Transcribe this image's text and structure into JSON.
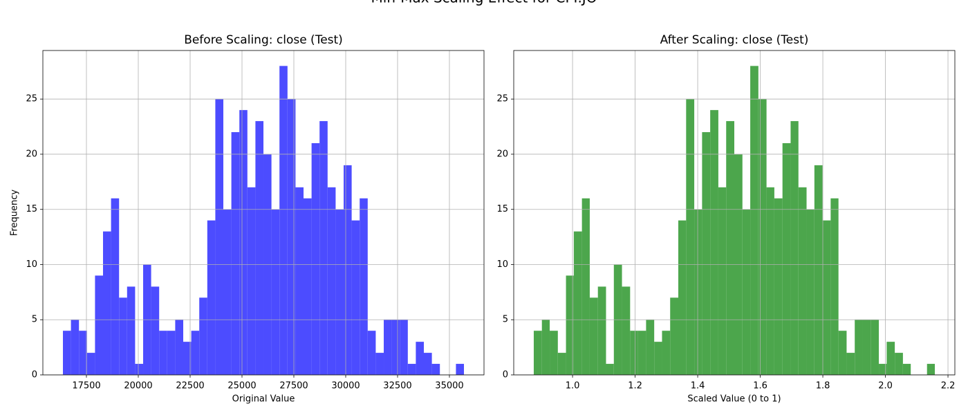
{
  "title": "Min-Max Scaling Effect for CPI.JO",
  "chart_data": [
    {
      "type": "histogram",
      "title": "Before Scaling: close (Test)",
      "xlabel": "Original Value",
      "ylabel": "Frequency",
      "bins": [
        16367,
        16754,
        17140,
        17527,
        17914,
        18300,
        18687,
        19074,
        19460,
        19847,
        20234,
        20620,
        21007,
        21394,
        21780,
        22167,
        22554,
        22940,
        23327,
        23714,
        24100,
        24487,
        24874,
        25260,
        25647,
        26034,
        26420,
        26807,
        27194,
        27580,
        27967,
        28354,
        28740,
        29127,
        29514,
        29900,
        30287,
        30674,
        31060,
        31447,
        31834,
        32220,
        32607,
        32994,
        33380,
        33767,
        34154,
        34540,
        34927,
        35314,
        35700
      ],
      "values": [
        4,
        5,
        4,
        2,
        9,
        13,
        16,
        7,
        8,
        1,
        10,
        8,
        4,
        4,
        5,
        3,
        4,
        7,
        14,
        25,
        15,
        22,
        24,
        17,
        23,
        20,
        15,
        28,
        25,
        17,
        16,
        21,
        23,
        17,
        15,
        19,
        14,
        16,
        4,
        2,
        5,
        5,
        5,
        1,
        3,
        2,
        1,
        0,
        0,
        1
      ],
      "color": "#4c4cff",
      "xlim": [
        15400,
        36667
      ],
      "ylim": [
        0,
        29.4
      ],
      "xticks": [
        17500,
        20000,
        22500,
        25000,
        27500,
        30000,
        32500,
        35000
      ],
      "yticks": [
        0,
        5,
        10,
        15,
        20,
        25
      ],
      "grid": true
    },
    {
      "type": "histogram",
      "title": "After Scaling: close (Test)",
      "xlabel": "Scaled Value (0 to 1)",
      "bins": [
        0.876,
        0.902,
        0.927,
        0.953,
        0.979,
        1.004,
        1.03,
        1.055,
        1.081,
        1.107,
        1.132,
        1.158,
        1.184,
        1.209,
        1.235,
        1.261,
        1.286,
        1.312,
        1.338,
        1.363,
        1.389,
        1.414,
        1.44,
        1.466,
        1.491,
        1.517,
        1.543,
        1.568,
        1.594,
        1.62,
        1.645,
        1.671,
        1.697,
        1.722,
        1.748,
        1.773,
        1.799,
        1.825,
        1.85,
        1.876,
        1.902,
        1.927,
        1.953,
        1.979,
        2.004,
        2.03,
        2.056,
        2.081,
        2.107,
        2.133,
        2.158
      ],
      "values": [
        4,
        5,
        4,
        2,
        9,
        13,
        16,
        7,
        8,
        1,
        10,
        8,
        4,
        4,
        5,
        3,
        4,
        7,
        14,
        25,
        15,
        22,
        24,
        17,
        23,
        20,
        15,
        28,
        25,
        17,
        16,
        21,
        23,
        17,
        15,
        19,
        14,
        16,
        4,
        2,
        5,
        5,
        5,
        1,
        3,
        2,
        1,
        0,
        0,
        1
      ],
      "color": "#4ca64c",
      "xlim": [
        0.812,
        2.222
      ],
      "ylim": [
        0,
        29.4
      ],
      "xticks": [
        {
          "value": 1,
          "label": "1.0"
        },
        1.2,
        1.4,
        1.6,
        1.8,
        {
          "value": 2,
          "label": "2.0"
        },
        2.2
      ],
      "yticks": [
        0,
        5,
        10,
        15,
        20,
        25
      ],
      "grid": true
    }
  ]
}
